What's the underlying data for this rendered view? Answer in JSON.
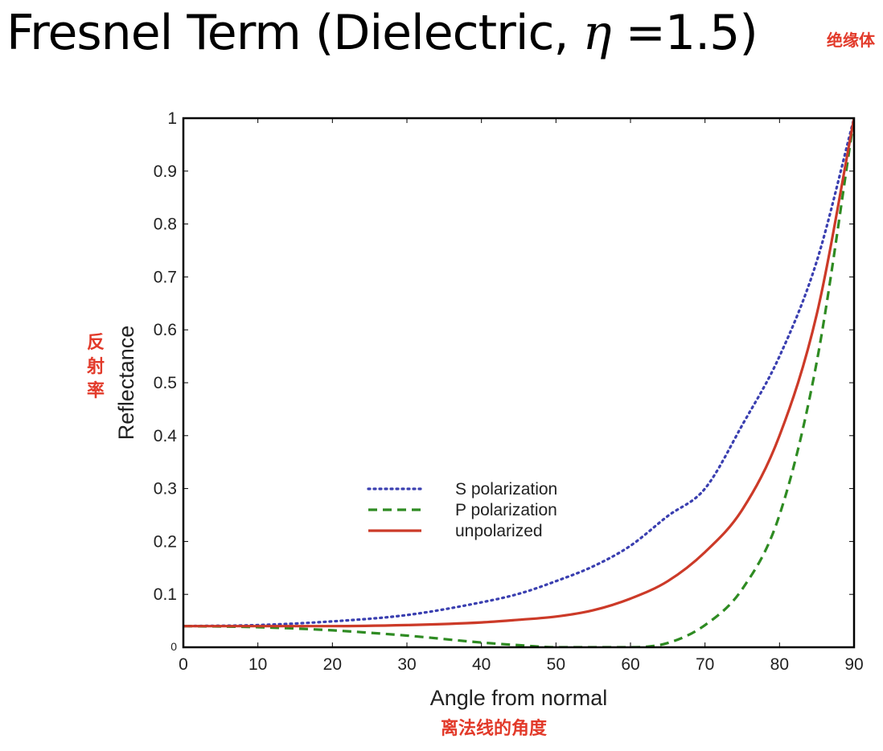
{
  "title": {
    "prefix": "Fresnel Term (Dielectric, ",
    "symbol": "η",
    "suffix": " =1.5)"
  },
  "annotations": {
    "top_right": "绝缘体",
    "y_axis": "反射率",
    "x_axis": "离法线的角度"
  },
  "colors": {
    "s_polarization": "#3a3fb0",
    "p_polarization": "#2e8b22",
    "unpolarized": "#cc3a28",
    "annotation": "#e23a2a"
  },
  "chart_data": {
    "type": "line",
    "xlabel": "Angle from normal",
    "ylabel": "Reflectance",
    "xlim": [
      0,
      90
    ],
    "ylim": [
      0,
      1
    ],
    "x_ticks": [
      "0",
      "10",
      "20",
      "30",
      "40",
      "50",
      "60",
      "70",
      "80",
      "90"
    ],
    "y_ticks": [
      "0",
      "0.1",
      "0.2",
      "0.3",
      "0.4",
      "0.5",
      "0.6",
      "0.7",
      "0.8",
      "0.9",
      "1"
    ],
    "grid": false,
    "legend_position": "center",
    "x": [
      0,
      10,
      20,
      30,
      40,
      45,
      50,
      55,
      60,
      65,
      70,
      75,
      80,
      85,
      90
    ],
    "series": [
      {
        "name": "S polarization",
        "style": "dotted",
        "values": [
          0.04,
          0.042,
          0.049,
          0.061,
          0.085,
          0.101,
          0.125,
          0.153,
          0.192,
          0.248,
          0.3,
          0.42,
          0.55,
          0.73,
          1.0
        ]
      },
      {
        "name": "P polarization",
        "style": "dashed",
        "values": [
          0.04,
          0.038,
          0.032,
          0.022,
          0.009,
          0.004,
          0.0,
          0.0,
          0.0,
          0.008,
          0.042,
          0.11,
          0.25,
          0.54,
          1.0
        ]
      },
      {
        "name": "unpolarized",
        "style": "solid",
        "values": [
          0.04,
          0.04,
          0.04,
          0.042,
          0.047,
          0.052,
          0.058,
          0.07,
          0.092,
          0.125,
          0.18,
          0.26,
          0.4,
          0.63,
          1.0
        ]
      }
    ]
  }
}
